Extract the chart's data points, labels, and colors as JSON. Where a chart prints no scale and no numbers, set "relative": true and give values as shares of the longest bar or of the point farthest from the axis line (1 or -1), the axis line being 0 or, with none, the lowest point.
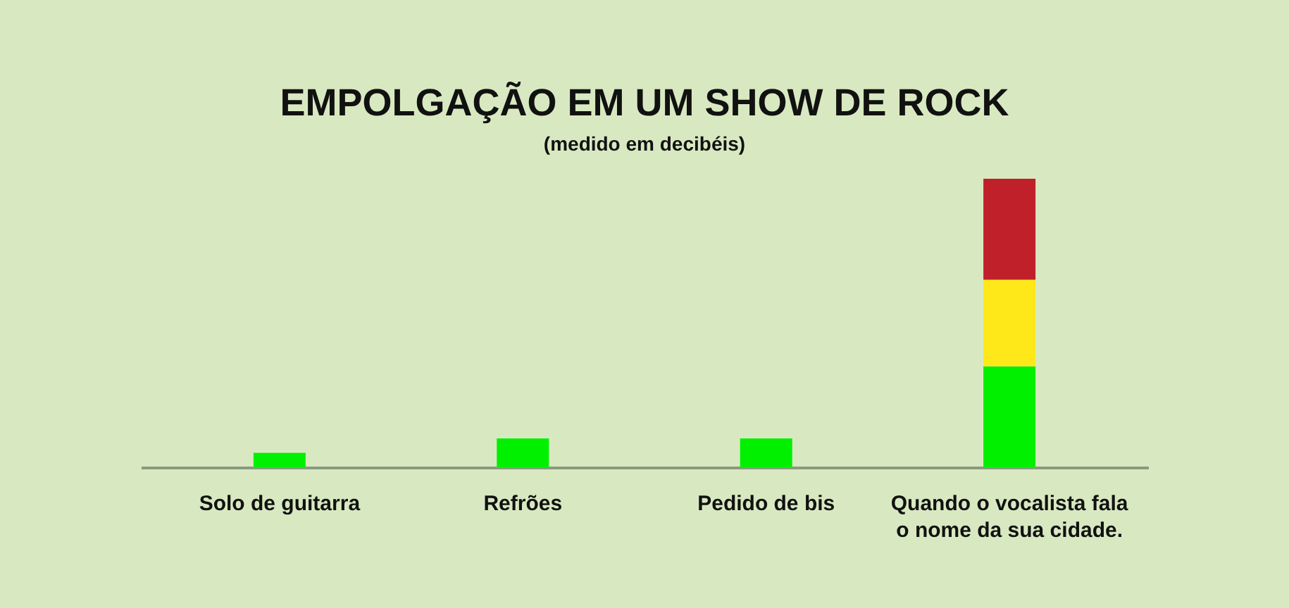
{
  "chart_data": {
    "type": "bar",
    "title": "EMPOLGAÇÃO EM UM SHOW DE ROCK",
    "subtitle": "(medido em decibéis)",
    "categories": [
      "Solo de guitarra",
      "Refrões",
      "Pedido de bis",
      "Quando o vocalista fala\no nome da sua cidade."
    ],
    "relative": true,
    "stacked": true,
    "grid": false,
    "series": [
      {
        "color": "#00f000",
        "values": [
          0.05,
          0.1,
          0.1,
          0.35
        ]
      },
      {
        "color": "#ffe81a",
        "values": [
          0,
          0,
          0,
          0.3
        ]
      },
      {
        "color": "#c0202a",
        "values": [
          0,
          0,
          0,
          0.35
        ]
      }
    ]
  }
}
